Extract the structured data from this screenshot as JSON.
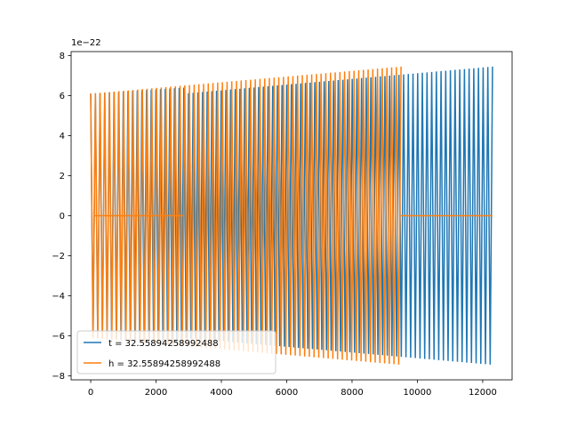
{
  "chart_data": {
    "type": "line",
    "title": "",
    "xlabel": "",
    "ylabel": "",
    "y_scale_label": "1e−22",
    "xlim": [
      -600,
      12900
    ],
    "ylim": [
      -8.2,
      8.2
    ],
    "x_ticks": [
      0,
      2000,
      4000,
      6000,
      8000,
      10000,
      12000
    ],
    "x_tick_labels": [
      "0",
      "2000",
      "4000",
      "6000",
      "8000",
      "10000",
      "12000"
    ],
    "y_ticks": [
      -8,
      -6,
      -4,
      -2,
      0,
      2,
      4,
      6,
      8
    ],
    "y_tick_labels": [
      "−8",
      "−6",
      "−4",
      "−2",
      "0",
      "2",
      "4",
      "6",
      "8"
    ],
    "grid": false,
    "legend_position": "bottom-left",
    "series": [
      {
        "name": "t = 32.55894258992488",
        "color": "#1f77b4",
        "description_segments": [
          {
            "kind": "oscillation",
            "x_start": 0,
            "x_end": 2850,
            "amp_start": 6.1,
            "amp_end": 6.4,
            "cycles": 20
          },
          {
            "kind": "oscillation",
            "x_start": 2850,
            "x_end": 12300,
            "amp_start": 6.1,
            "amp_end": 7.45,
            "cycles": 66
          }
        ]
      },
      {
        "name": "h = 32.55894258992488",
        "color": "#ff7f0e",
        "description_segments": [
          {
            "kind": "oscillation",
            "x_start": 0,
            "x_end": 9500,
            "amp_start": 6.1,
            "amp_end": 7.45,
            "cycles": 66
          },
          {
            "kind": "flat",
            "x_start": 100,
            "x_end": 2850,
            "value": 0
          },
          {
            "kind": "flat",
            "x_start": 9500,
            "x_end": 12300,
            "value": 0
          }
        ]
      }
    ]
  }
}
